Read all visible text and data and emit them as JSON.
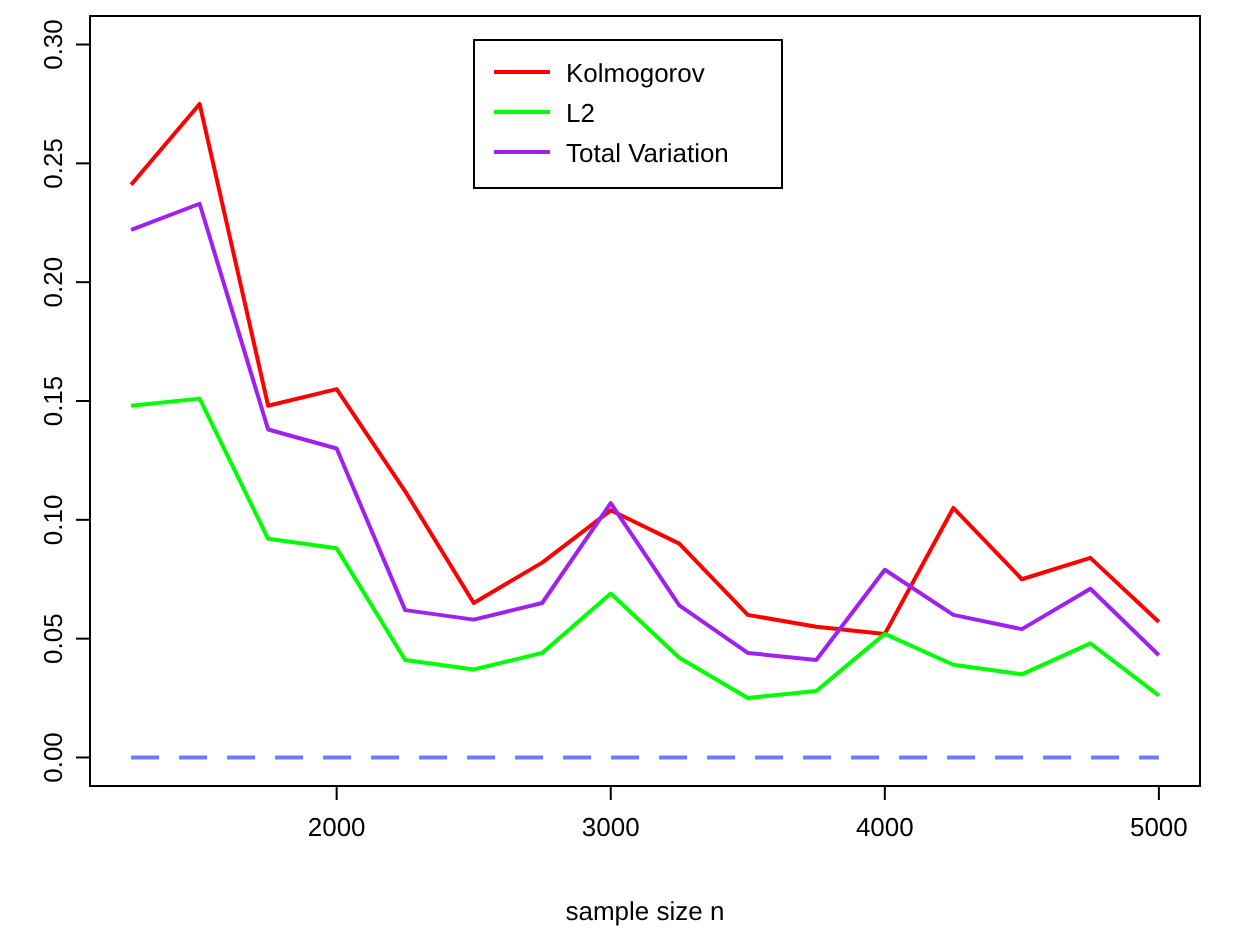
{
  "chart_data": {
    "type": "line",
    "xlabel": "sample size n",
    "x": [
      1250,
      1500,
      1750,
      2000,
      2250,
      2500,
      2750,
      3000,
      3250,
      3500,
      3750,
      4000,
      4250,
      4500,
      4750,
      5000
    ],
    "xlim": [
      1100,
      5150
    ],
    "xticks": [
      2000,
      3000,
      4000,
      5000
    ],
    "ylim": [
      -0.012,
      0.312
    ],
    "yticks": [
      {
        "value": 0,
        "label": "0.00"
      },
      {
        "value": 0.05,
        "label": "0.05"
      },
      {
        "value": 0.1,
        "label": "0.10"
      },
      {
        "value": 0.15,
        "label": "0.15"
      },
      {
        "value": 0.2,
        "label": "0.20"
      },
      {
        "value": 0.25,
        "label": "0.25"
      },
      {
        "value": 0.3,
        "label": "0.30"
      }
    ],
    "legend": "top",
    "grid": false,
    "series": [
      {
        "name": "Kolmogorov",
        "color": "#ff0000",
        "values": [
          0.241,
          0.275,
          0.148,
          0.155,
          0.112,
          0.065,
          0.082,
          0.104,
          0.09,
          0.06,
          0.055,
          0.052,
          0.105,
          0.075,
          0.084,
          0.057
        ]
      },
      {
        "name": "L2",
        "color": "#00ff00",
        "values": [
          0.148,
          0.151,
          0.092,
          0.088,
          0.041,
          0.037,
          0.044,
          0.069,
          0.042,
          0.025,
          0.028,
          0.052,
          0.039,
          0.035,
          0.048,
          0.026
        ]
      },
      {
        "name": "Total Variation",
        "color": "#a020f0",
        "values": [
          0.222,
          0.233,
          0.138,
          0.13,
          0.062,
          0.058,
          0.065,
          0.107,
          0.064,
          0.044,
          0.041,
          0.079,
          0.06,
          0.054,
          0.071,
          0.043
        ]
      },
      {
        "color": "#6a7bff",
        "line_style": "dashed",
        "values": [
          0,
          0,
          0,
          0,
          0,
          0,
          0,
          0,
          0,
          0,
          0,
          0,
          0,
          0,
          0,
          0
        ]
      }
    ]
  }
}
